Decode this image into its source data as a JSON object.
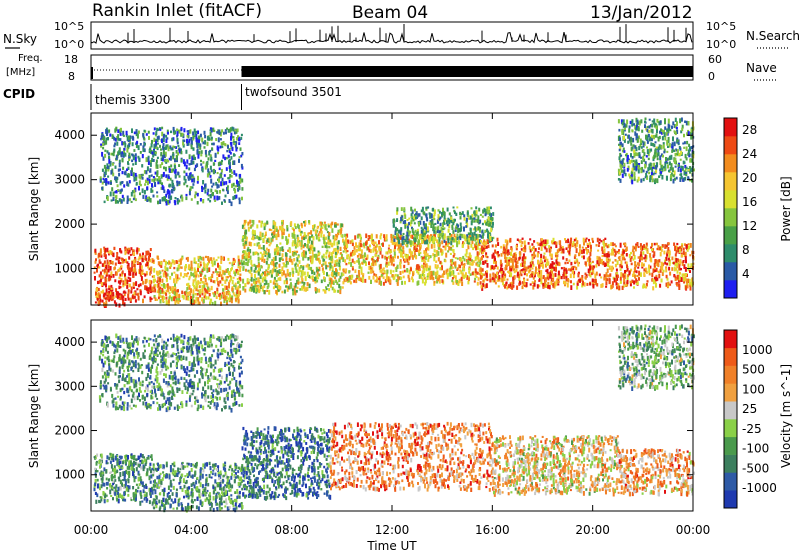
{
  "header": {
    "station": "Rankin Inlet (fitACF)",
    "beam": "Beam 04",
    "date": "13/Jan/2012"
  },
  "top_panels": {
    "nsky_label": "N.Sky",
    "nsearch_label": "N.Search",
    "freq_label_line1": "Freq.",
    "freq_label_line2": "[MHz]",
    "nave_label": "Nave",
    "cpid_label": "CPID",
    "noise_ticks_left": [
      "10^5",
      "10^0"
    ],
    "noise_ticks_right": [
      "10^5",
      "10^0"
    ],
    "freq_ticks": [
      "18",
      "8"
    ],
    "nave_ticks": [
      "60",
      "0"
    ],
    "cpid_segments": [
      {
        "name": "themis 3300",
        "start_hour": 0,
        "end_hour": 6
      },
      {
        "name": "twofsound 3501",
        "start_hour": 6,
        "end_hour": 24
      }
    ]
  },
  "xaxis": {
    "title": "Time UT",
    "tick_labels": [
      "00:00",
      "04:00",
      "08:00",
      "12:00",
      "16:00",
      "20:00",
      "00:00"
    ],
    "range_hours": [
      0,
      24
    ]
  },
  "chart_data": [
    {
      "type": "heatmap",
      "name": "power",
      "xlabel": "Time UT",
      "ylabel": "Slant Range [km]",
      "x_range_hours": [
        0,
        24
      ],
      "y_range_km": [
        180,
        4500
      ],
      "y_ticks": [
        1000,
        2000,
        3000,
        4000
      ],
      "colorbar": {
        "label": "Power [dB]",
        "ticks": [
          "4",
          "8",
          "12",
          "16",
          "20",
          "24",
          "28"
        ],
        "colors": [
          "#1f1ff0",
          "#2a5aa6",
          "#2e8c6b",
          "#49a047",
          "#86c53e",
          "#d8e030",
          "#f5c531",
          "#f28c1e",
          "#ee4a14",
          "#e21010"
        ],
        "range": [
          0,
          30
        ]
      },
      "clusters": [
        {
          "x": [
            0.1,
            2.4
          ],
          "y": [
            300,
            1500
          ],
          "level": 0.85
        },
        {
          "x": [
            0.1,
            1.3
          ],
          "y": [
            180,
            500
          ],
          "level": 0.9
        },
        {
          "x": [
            2.4,
            6.0
          ],
          "y": [
            250,
            1300
          ],
          "level": 0.65
        },
        {
          "x": [
            6.0,
            10.0
          ],
          "y": [
            500,
            2100
          ],
          "level": 0.55
        },
        {
          "x": [
            10.0,
            15.5
          ],
          "y": [
            700,
            1800
          ],
          "level": 0.65
        },
        {
          "x": [
            15.5,
            20.5
          ],
          "y": [
            600,
            1700
          ],
          "level": 0.8
        },
        {
          "x": [
            20.5,
            24.0
          ],
          "y": [
            600,
            1600
          ],
          "level": 0.75
        },
        {
          "x": [
            0.3,
            6.0
          ],
          "y": [
            2500,
            4200
          ],
          "level": 0.25
        },
        {
          "x": [
            21.0,
            24.0
          ],
          "y": [
            3000,
            4400
          ],
          "level": 0.3
        },
        {
          "x": [
            12.0,
            16.0
          ],
          "y": [
            1600,
            2400
          ],
          "level": 0.35
        }
      ]
    },
    {
      "type": "heatmap",
      "name": "velocity",
      "xlabel": "Time UT",
      "ylabel": "Slant Range [km]",
      "x_range_hours": [
        0,
        24
      ],
      "y_range_km": [
        180,
        4500
      ],
      "y_ticks": [
        1000,
        2000,
        3000,
        4000
      ],
      "colorbar": {
        "label": "Velocity [m s^-1]",
        "ticks": [
          "1000",
          "500",
          "100",
          "25",
          "-25",
          "-100",
          "-500",
          "-1000"
        ],
        "colors": [
          "#1f3ab0",
          "#2e5aa6",
          "#3c7f5e",
          "#4a9a4c",
          "#8ad048",
          "#c8c8c8",
          "#f0a040",
          "#f08028",
          "#ee5a18",
          "#e21010"
        ],
        "range": [
          -1000,
          1000
        ]
      },
      "clusters": [
        {
          "x": [
            0.1,
            2.4
          ],
          "y": [
            400,
            1500
          ],
          "level": 0.3
        },
        {
          "x": [
            2.4,
            6.0
          ],
          "y": [
            250,
            1300
          ],
          "level": 0.3
        },
        {
          "x": [
            6.0,
            9.5
          ],
          "y": [
            500,
            2100
          ],
          "level": 0.2
        },
        {
          "x": [
            9.5,
            16.0
          ],
          "y": [
            700,
            2200
          ],
          "level": 0.75
        },
        {
          "x": [
            16.0,
            21.0
          ],
          "y": [
            600,
            1900
          ],
          "level": 0.6
        },
        {
          "x": [
            21.0,
            24.0
          ],
          "y": [
            600,
            1600
          ],
          "level": 0.7
        },
        {
          "x": [
            0.3,
            6.0
          ],
          "y": [
            2500,
            4200
          ],
          "level": 0.3
        },
        {
          "x": [
            21.0,
            24.0
          ],
          "y": [
            3000,
            4400
          ],
          "level": 0.4
        }
      ]
    }
  ]
}
